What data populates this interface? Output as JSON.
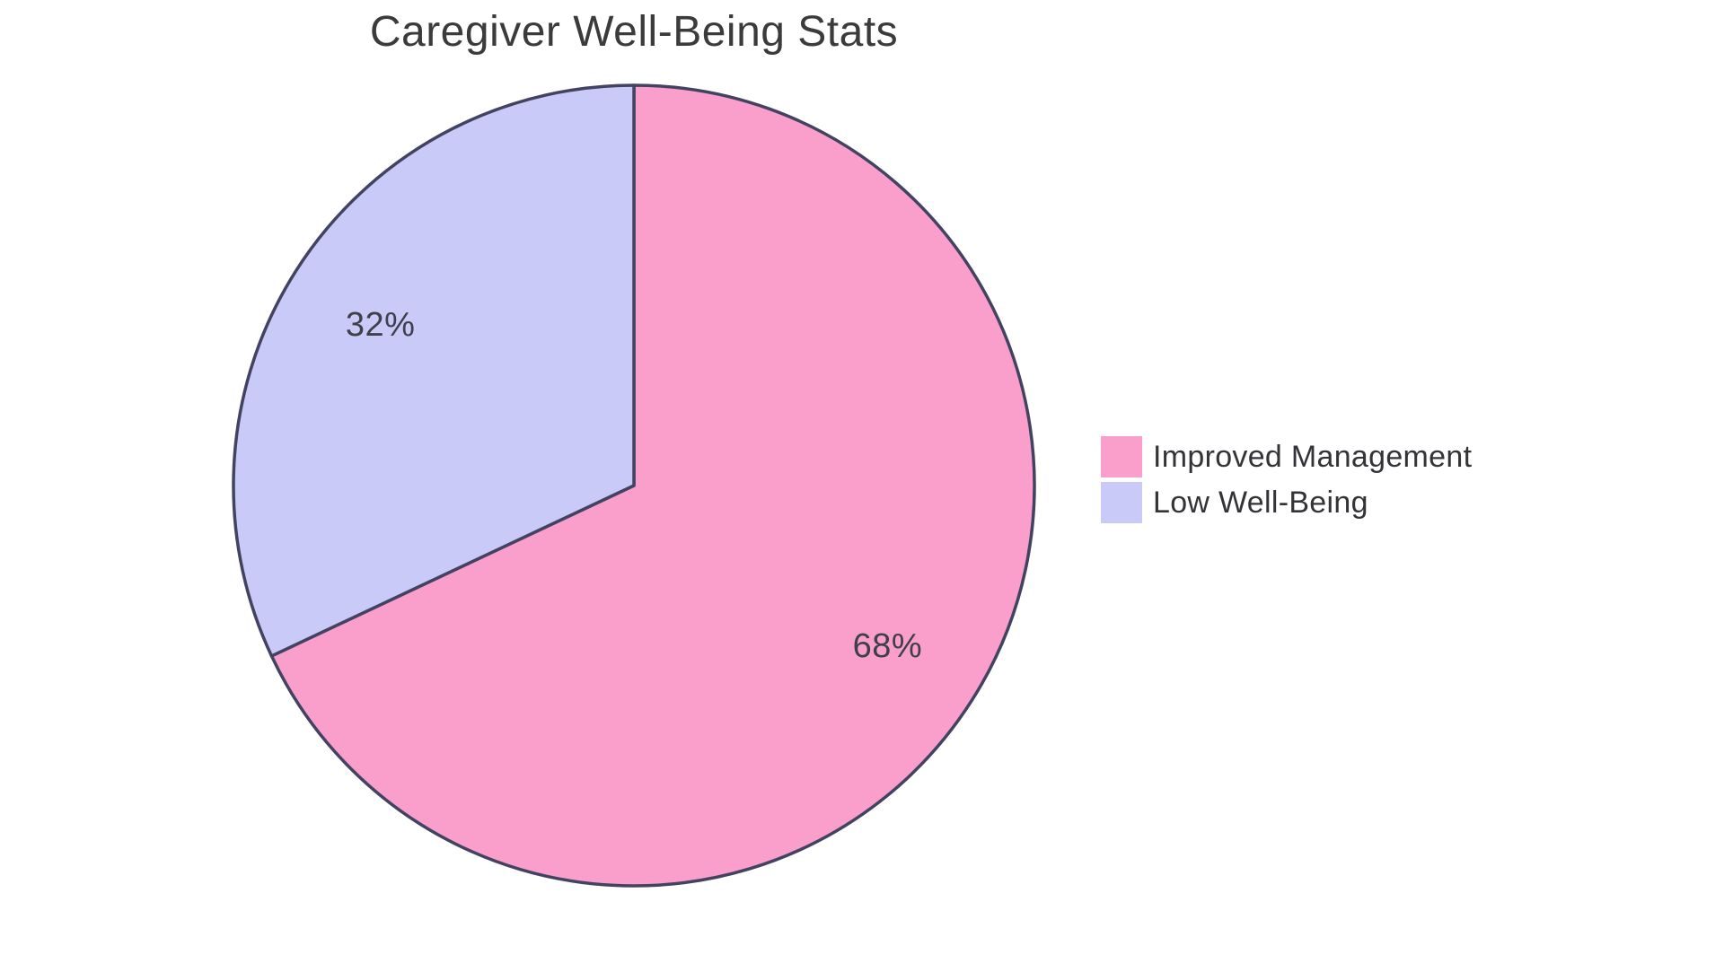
{
  "chart_data": {
    "type": "pie",
    "title": "Caregiver Well-Being Stats",
    "slices": [
      {
        "label": "Improved Management",
        "value": 68,
        "percent_label": "68%",
        "color": "#FA9FCB"
      },
      {
        "label": "Low Well-Being",
        "value": 32,
        "percent_label": "32%",
        "color": "#CACAF8"
      }
    ],
    "start_angle": "top",
    "direction": "clockwise",
    "slice_border_color": "#424261",
    "slice_border_width": 3.5,
    "percent_label_color": "#3F3F4A",
    "title_color": "#3B3B3B",
    "legend_text_color": "#333338",
    "legend_position": "right",
    "background_color": "#FFFFFF"
  }
}
